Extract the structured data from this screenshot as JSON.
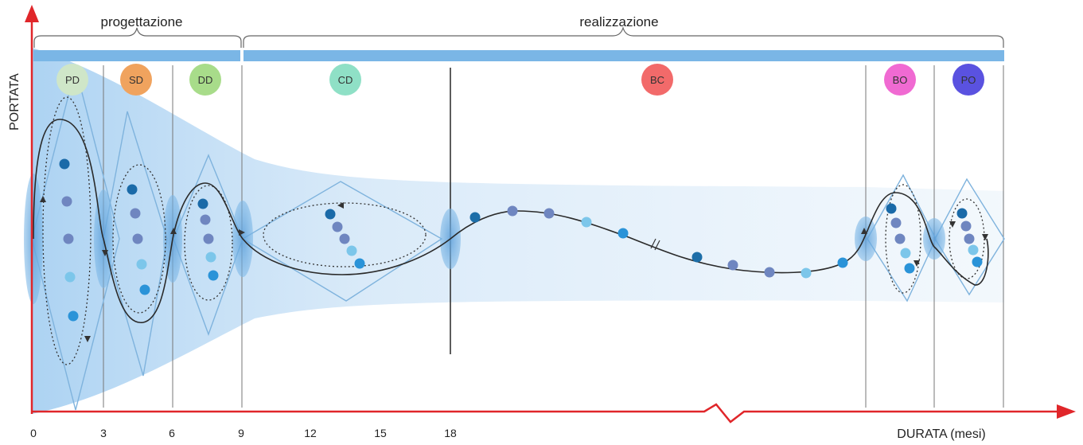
{
  "axes": {
    "y_label": "PORTATA",
    "x_label": "DURATA (mesi)",
    "x_ticks": [
      "0",
      "3",
      "6",
      "9",
      "12",
      "15",
      "18"
    ]
  },
  "brackets": {
    "left_label": "progettazione",
    "right_label": "realizzazione"
  },
  "phases": [
    {
      "label": "PD",
      "color": "#cfe6c8"
    },
    {
      "label": "SD",
      "color": "#f0a35e"
    },
    {
      "label": "DD",
      "color": "#a8dc8a"
    },
    {
      "label": "CD",
      "color": "#8fe0c6"
    },
    {
      "label": "BC",
      "color": "#f26a6a"
    },
    {
      "label": "BO",
      "color": "#f06ad2"
    },
    {
      "label": "PO",
      "color": "#5a52e0"
    }
  ],
  "colors": {
    "axis": "#e0262a",
    "band": "#7ab6e6",
    "cone": "#bcdaf4",
    "diamond": "#7fb3dd",
    "ellipse_fill": "#5d9fd9",
    "curve": "#2a2a2a",
    "dot_dark": "#1a6aa8",
    "dot_mid": "#6f86c0",
    "dot_light": "#7cc6ea"
  }
}
